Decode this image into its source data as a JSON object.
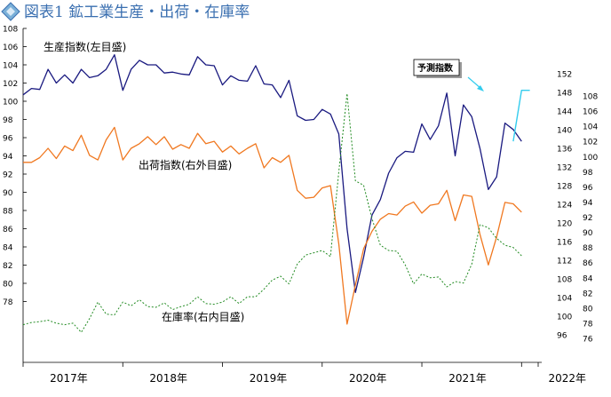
{
  "title": "図表1 鉱工業生産・出荷・在庫率",
  "colors": {
    "production": "#1a1a80",
    "shipments": "#f07820",
    "inventory": "#228b22",
    "forecast": "#33ccee",
    "title": "#3a6fb0",
    "diamond": "#7ab0d8"
  },
  "icons": {
    "title_marker": "diamond-icon",
    "callout_arrow": "arrow-icon"
  },
  "chart_data": {
    "type": "line",
    "title": "図表1 鉱工業生産・出荷・在庫率",
    "x_axis": {
      "tick_labels": [
        "2017年",
        "2018年",
        "2019年",
        "2020年",
        "2021年",
        "2022年"
      ],
      "start": "2017-01",
      "end": "2022-03"
    },
    "y_axes": {
      "left": {
        "label": "左目盛",
        "min": 78,
        "max": 108,
        "ticks": [
          78,
          80,
          82,
          84,
          86,
          88,
          90,
          92,
          94,
          96,
          98,
          100,
          102,
          104,
          106,
          108
        ]
      },
      "right_outer": {
        "label": "右外目盛",
        "min": 96,
        "max": 152,
        "ticks": [
          96,
          100,
          104,
          108,
          112,
          116,
          120,
          124,
          128,
          132,
          136,
          140,
          144,
          148,
          152
        ]
      },
      "right_inner": {
        "label": "右内目盛",
        "min": 76,
        "max": 110,
        "ticks": [
          76,
          78,
          80,
          82,
          84,
          86,
          88,
          90,
          92,
          94,
          96,
          98,
          100,
          102,
          104,
          106,
          108
        ]
      }
    },
    "grid": false,
    "annotations": {
      "production": "生産指数(左目盛)",
      "shipments": "出荷指数(右外目盛)",
      "inventory": "在庫率(右内目盛)",
      "forecast": "予測指数"
    },
    "series": [
      {
        "name": "生産指数(左目盛)",
        "axis": "left",
        "start": "2017-01",
        "values": [
          100.7,
          101.4,
          101.3,
          103.5,
          102.0,
          102.9,
          102.0,
          103.5,
          102.6,
          102.8,
          103.5,
          105.1,
          101.2,
          103.5,
          104.5,
          104.0,
          104.0,
          103.1,
          103.2,
          103.0,
          102.9,
          104.9,
          104.0,
          103.9,
          101.8,
          102.8,
          102.3,
          102.2,
          103.9,
          101.9,
          101.8,
          100.4,
          102.3,
          98.4,
          97.9,
          98.0,
          99.1,
          98.6,
          96.4,
          86.0,
          79.0,
          82.9,
          87.5,
          89.2,
          92.1,
          93.8,
          94.5,
          94.4,
          97.5,
          95.8,
          97.3,
          100.9,
          94.0,
          99.6,
          98.3,
          94.8,
          90.3,
          91.7,
          97.6,
          96.9,
          95.6
        ]
      },
      {
        "name": "出荷指数(右外目盛)",
        "axis": "right_outer",
        "start": "2017-01",
        "values": [
          133.0,
          133.0,
          134.0,
          136.0,
          133.8,
          136.5,
          135.5,
          138.8,
          134.5,
          133.5,
          137.8,
          140.5,
          133.5,
          136.0,
          137.0,
          138.5,
          136.8,
          138.5,
          135.8,
          136.8,
          136.0,
          139.2,
          137.0,
          137.5,
          135.2,
          136.5,
          134.8,
          136.0,
          137.0,
          131.8,
          134.0,
          133.0,
          134.5,
          127.0,
          125.3,
          125.5,
          127.5,
          128.0,
          115.5,
          98.3,
          106.7,
          114.5,
          118.2,
          120.8,
          122.0,
          121.7,
          123.6,
          124.5,
          122.1,
          123.8,
          124.1,
          127.0,
          120.5,
          126.0,
          125.7,
          117.5,
          111.0,
          117.0,
          124.4,
          124.1,
          122.3
        ]
      },
      {
        "name": "在庫率(右内目盛)",
        "axis": "right_inner",
        "start": "2017-01",
        "values": [
          77.8,
          78.1,
          78.2,
          78.4,
          78.0,
          77.8,
          78.0,
          76.8,
          78.6,
          80.8,
          79.2,
          79.1,
          80.8,
          80.3,
          81.1,
          80.2,
          80.1,
          80.7,
          79.8,
          80.2,
          80.5,
          81.5,
          80.6,
          80.5,
          80.8,
          81.5,
          80.6,
          81.5,
          81.5,
          82.5,
          83.7,
          84.2,
          83.2,
          85.8,
          87.0,
          87.3,
          87.6,
          86.8,
          98.0,
          108.3,
          96.8,
          96.2,
          91.8,
          88.3,
          87.6,
          87.5,
          85.7,
          83.2,
          84.5,
          84.0,
          84.1,
          82.8,
          83.5,
          83.3,
          85.8,
          91.0,
          90.6,
          89.2,
          88.3,
          88.0,
          86.9
        ]
      },
      {
        "name": "予測指数",
        "axis": "left",
        "start": "2021-12",
        "values": [
          95.6,
          101.2,
          101.2
        ]
      }
    ]
  }
}
